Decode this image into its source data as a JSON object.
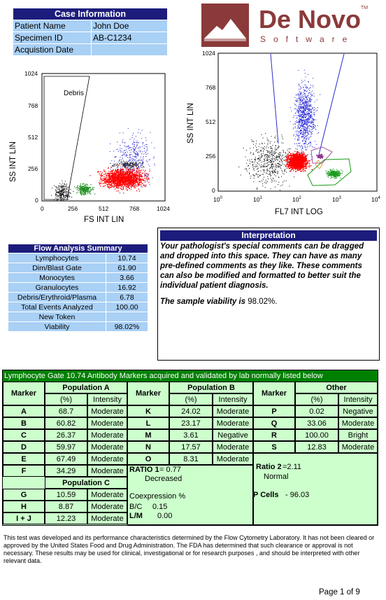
{
  "case_info": {
    "title": "Case Information",
    "rows": [
      {
        "label": "Patient Name",
        "value": "John Doe"
      },
      {
        "label": "Specimen ID",
        "value": "AB-C1234"
      },
      {
        "label": "Acquistion Date",
        "value": ""
      }
    ]
  },
  "logo": {
    "name": "De Novo",
    "sub": "Software",
    "tm": "TM"
  },
  "plot1": {
    "gate_label": "Debris",
    "ylabel": "SS INT LIN",
    "xlabel": "FS INT LIN",
    "yticks": [
      "1024",
      "768",
      "512",
      "256",
      "0"
    ],
    "xticks": [
      "0",
      "256",
      "512",
      "768",
      "1024"
    ]
  },
  "plot2": {
    "ylabel": "SS INT LIN",
    "xlabel": "FL7 INT LOG",
    "yticks": [
      "1024",
      "768",
      "512",
      "256",
      "0"
    ],
    "xticks": [
      "10",
      "10",
      "10",
      "10",
      "10"
    ],
    "xexp": [
      "0",
      "1",
      "2",
      "3",
      "4"
    ]
  },
  "flow_summary": {
    "title": "Flow Analysis Summary",
    "rows": [
      {
        "label": "Lymphocytes",
        "value": "10.74"
      },
      {
        "label": "Dim/Blast Gate",
        "value": "61.90"
      },
      {
        "label": "Monocytes",
        "value": "3.66"
      },
      {
        "label": "Granulocytes",
        "value": "16.92"
      },
      {
        "label": "Debris/Erythroid/Plasma",
        "value": "6.78"
      },
      {
        "label": "Total Events Analyzed",
        "value": "100.00"
      },
      {
        "label": "New Token",
        "value": ""
      },
      {
        "label": "Viability",
        "value": "98.02%"
      }
    ]
  },
  "interpretation": {
    "title": "Interpretation",
    "body": "Your pathologist's special comments can be dragged and dropped into this space.  They can have as many pre-defined comments as they like. These comments can also be modified and formatted to better suit the individual patient diagnosis.",
    "viability_prefix": "The sample viability is",
    "viability_value": "98.02%."
  },
  "markers": {
    "title": "Lymphocyte Gate 10.74   Antibody Markers acquired and validated by lab normally listed below",
    "marker_label": "Marker",
    "pct_label": "(%)",
    "intensity_label": "Intensity",
    "popA_label": "Population A",
    "popB_label": "Population B",
    "popC_label": "Population C",
    "other_label": "Other",
    "popA": [
      {
        "m": "A",
        "p": "68.7",
        "i": "Moderate"
      },
      {
        "m": "B",
        "p": "60.82",
        "i": "Moderate"
      },
      {
        "m": "C",
        "p": "26.37",
        "i": "Moderate"
      },
      {
        "m": "D",
        "p": "59.97",
        "i": "Moderate"
      },
      {
        "m": "E",
        "p": "67.49",
        "i": "Moderate"
      },
      {
        "m": "F",
        "p": "34.29",
        "i": "Moderate"
      }
    ],
    "popC": [
      {
        "m": "G",
        "p": "10.59",
        "i": "Moderate"
      },
      {
        "m": "H",
        "p": "8.87",
        "i": "Moderate"
      },
      {
        "m": "I + J",
        "p": "12.23",
        "i": "Moderate"
      }
    ],
    "popB": [
      {
        "m": "K",
        "p": "24.02",
        "i": "Moderate"
      },
      {
        "m": "L",
        "p": "23.17",
        "i": "Moderate"
      },
      {
        "m": "M",
        "p": "3.61",
        "i": "Negative"
      },
      {
        "m": "N",
        "p": "17.57",
        "i": "Moderate"
      },
      {
        "m": "O",
        "p": "8.31",
        "i": "Moderate"
      }
    ],
    "other": [
      {
        "m": "P",
        "p": "0.02",
        "i": "Negative"
      },
      {
        "m": "Q",
        "p": "33.06",
        "i": "Moderate"
      },
      {
        "m": "R",
        "p": "100.00",
        "i": "Bright"
      },
      {
        "m": "S",
        "p": "12.83",
        "i": "Moderate"
      }
    ],
    "ratio1_label": "RATIO 1",
    "ratio1_value": "= 0.77",
    "ratio1_note": "Decreased",
    "coexp_label": "Coexpression   %",
    "bc_label": "B/C",
    "bc_value": "0.15",
    "lm_label": "L/M",
    "lm_value": "0.00",
    "ratio2_label": "Ratio 2",
    "ratio2_value": "=2.11",
    "ratio2_note": "Normal",
    "pcells_label": "P Cells",
    "pcells_value": "- 96.03"
  },
  "footer": "This test was developed and its performance characteristics determined by the Flow Cytometry Laboratory.  It has not been cleared or approved by the United States Food and Drug Administration.  The FDA has determined that such clearance or approval is not necessary.  These results may be used for clinical, investigational or for research purposes , and should be interpreted with other relevant data.",
  "page_label": "Page 1 of 9"
}
